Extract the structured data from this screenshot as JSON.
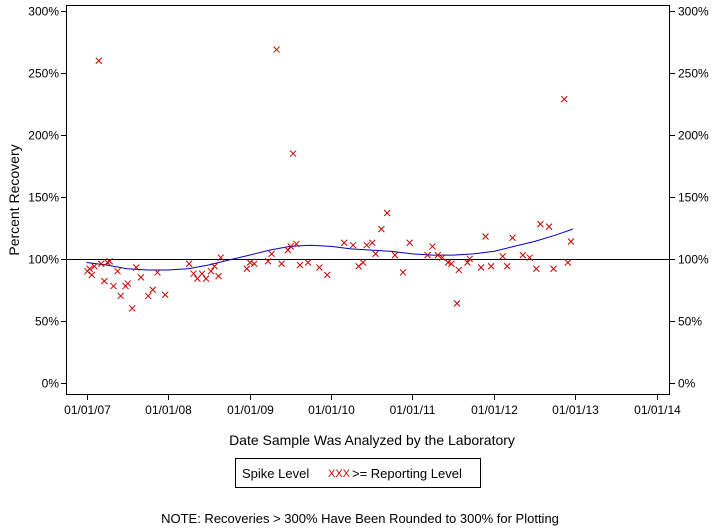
{
  "chart_data": {
    "type": "scatter",
    "xlabel": "Date Sample Was Analyzed by the Laboratory",
    "ylabel": "Percent Recovery",
    "x_ticks": [
      "01/01/07",
      "01/01/08",
      "01/01/09",
      "01/01/10",
      "01/01/11",
      "01/01/12",
      "01/01/13",
      "01/01/14"
    ],
    "y_ticks": [
      "0%",
      "50%",
      "100%",
      "150%",
      "200%",
      "250%",
      "300%"
    ],
    "xlim": [
      "2006-10-01",
      "2014-03-01"
    ],
    "ylim": [
      -10,
      305
    ],
    "reference_line": 100,
    "legend": {
      "title": "Spike Level",
      "entry_marker": "XXX",
      "entry_label": ">= Reporting Level",
      "placement": "bottom-center"
    },
    "note": "NOTE: Recoveries > 300% Have Been Rounded to 300% for Plotting",
    "colors": {
      "points": "#cc0000",
      "trend": "#0000cc",
      "reference": "#000000"
    },
    "series": [
      {
        "name": ">= Reporting Level",
        "marker": "x",
        "points": [
          [
            "2007-01-05",
            90
          ],
          [
            "2007-01-15",
            92
          ],
          [
            "2007-01-25",
            87
          ],
          [
            "2007-02-05",
            94
          ],
          [
            "2007-02-25",
            260
          ],
          [
            "2007-03-08",
            96
          ],
          [
            "2007-03-22",
            82
          ],
          [
            "2007-04-05",
            97
          ],
          [
            "2007-04-15",
            98
          ],
          [
            "2007-05-02",
            78
          ],
          [
            "2007-05-20",
            90
          ],
          [
            "2007-06-03",
            70
          ],
          [
            "2007-06-25",
            78
          ],
          [
            "2007-07-05",
            80
          ],
          [
            "2007-07-25",
            60
          ],
          [
            "2007-08-12",
            93
          ],
          [
            "2007-09-02",
            85
          ],
          [
            "2007-10-05",
            70
          ],
          [
            "2007-10-25",
            75
          ],
          [
            "2007-11-15",
            89
          ],
          [
            "2007-12-20",
            71
          ],
          [
            "2008-04-05",
            96
          ],
          [
            "2008-04-25",
            88
          ],
          [
            "2008-05-12",
            84
          ],
          [
            "2008-06-02",
            88
          ],
          [
            "2008-06-20",
            84
          ],
          [
            "2008-07-12",
            90
          ],
          [
            "2008-07-28",
            94
          ],
          [
            "2008-08-15",
            86
          ],
          [
            "2008-08-25",
            101
          ],
          [
            "2008-12-20",
            92
          ],
          [
            "2009-01-03",
            97
          ],
          [
            "2009-01-22",
            96
          ],
          [
            "2009-03-25",
            98
          ],
          [
            "2009-04-10",
            104
          ],
          [
            "2009-05-02",
            269
          ],
          [
            "2009-05-25",
            96
          ],
          [
            "2009-06-22",
            107
          ],
          [
            "2009-07-05",
            110
          ],
          [
            "2009-07-15",
            185
          ],
          [
            "2009-07-30",
            112
          ],
          [
            "2009-08-15",
            95
          ],
          [
            "2009-09-20",
            97
          ],
          [
            "2009-11-10",
            93
          ],
          [
            "2009-12-15",
            87
          ],
          [
            "2010-03-01",
            113
          ],
          [
            "2010-04-10",
            111
          ],
          [
            "2010-05-05",
            94
          ],
          [
            "2010-05-25",
            97
          ],
          [
            "2010-06-10",
            111
          ],
          [
            "2010-07-05",
            113
          ],
          [
            "2010-07-20",
            104
          ],
          [
            "2010-08-15",
            124
          ],
          [
            "2010-09-10",
            137
          ],
          [
            "2010-10-15",
            103
          ],
          [
            "2010-11-20",
            89
          ],
          [
            "2010-12-20",
            113
          ],
          [
            "2011-03-10",
            103
          ],
          [
            "2011-04-01",
            110
          ],
          [
            "2011-04-25",
            103
          ],
          [
            "2011-05-15",
            101
          ],
          [
            "2011-06-10",
            97
          ],
          [
            "2011-06-25",
            96
          ],
          [
            "2011-07-20",
            64
          ],
          [
            "2011-07-28",
            91
          ],
          [
            "2011-09-05",
            97
          ],
          [
            "2011-09-15",
            100
          ],
          [
            "2011-11-05",
            93
          ],
          [
            "2011-11-25",
            118
          ],
          [
            "2011-12-20",
            94
          ],
          [
            "2012-02-10",
            102
          ],
          [
            "2012-03-01",
            94
          ],
          [
            "2012-03-25",
            117
          ],
          [
            "2012-05-10",
            103
          ],
          [
            "2012-06-10",
            101
          ],
          [
            "2012-07-10",
            92
          ],
          [
            "2012-07-28",
            128
          ],
          [
            "2012-09-05",
            126
          ],
          [
            "2012-09-25",
            92
          ],
          [
            "2012-11-12",
            229
          ],
          [
            "2012-11-28",
            97
          ],
          [
            "2012-12-12",
            114
          ]
        ]
      },
      {
        "name": "trend",
        "type": "line",
        "points": [
          [
            "2007-01-01",
            97
          ],
          [
            "2007-04-01",
            95
          ],
          [
            "2007-07-01",
            92
          ],
          [
            "2007-10-01",
            91
          ],
          [
            "2008-01-01",
            91
          ],
          [
            "2008-04-01",
            92
          ],
          [
            "2008-07-01",
            95
          ],
          [
            "2008-10-01",
            99
          ],
          [
            "2009-01-01",
            103
          ],
          [
            "2009-04-01",
            107
          ],
          [
            "2009-07-01",
            110
          ],
          [
            "2009-10-01",
            111
          ],
          [
            "2010-01-01",
            110
          ],
          [
            "2010-04-01",
            108
          ],
          [
            "2010-07-01",
            107
          ],
          [
            "2010-10-01",
            106
          ],
          [
            "2011-01-01",
            104
          ],
          [
            "2011-04-01",
            103
          ],
          [
            "2011-07-01",
            103
          ],
          [
            "2011-10-01",
            104
          ],
          [
            "2012-01-01",
            106
          ],
          [
            "2012-04-01",
            110
          ],
          [
            "2012-07-01",
            114
          ],
          [
            "2012-10-01",
            119
          ],
          [
            "2012-12-20",
            124
          ]
        ]
      }
    ]
  }
}
